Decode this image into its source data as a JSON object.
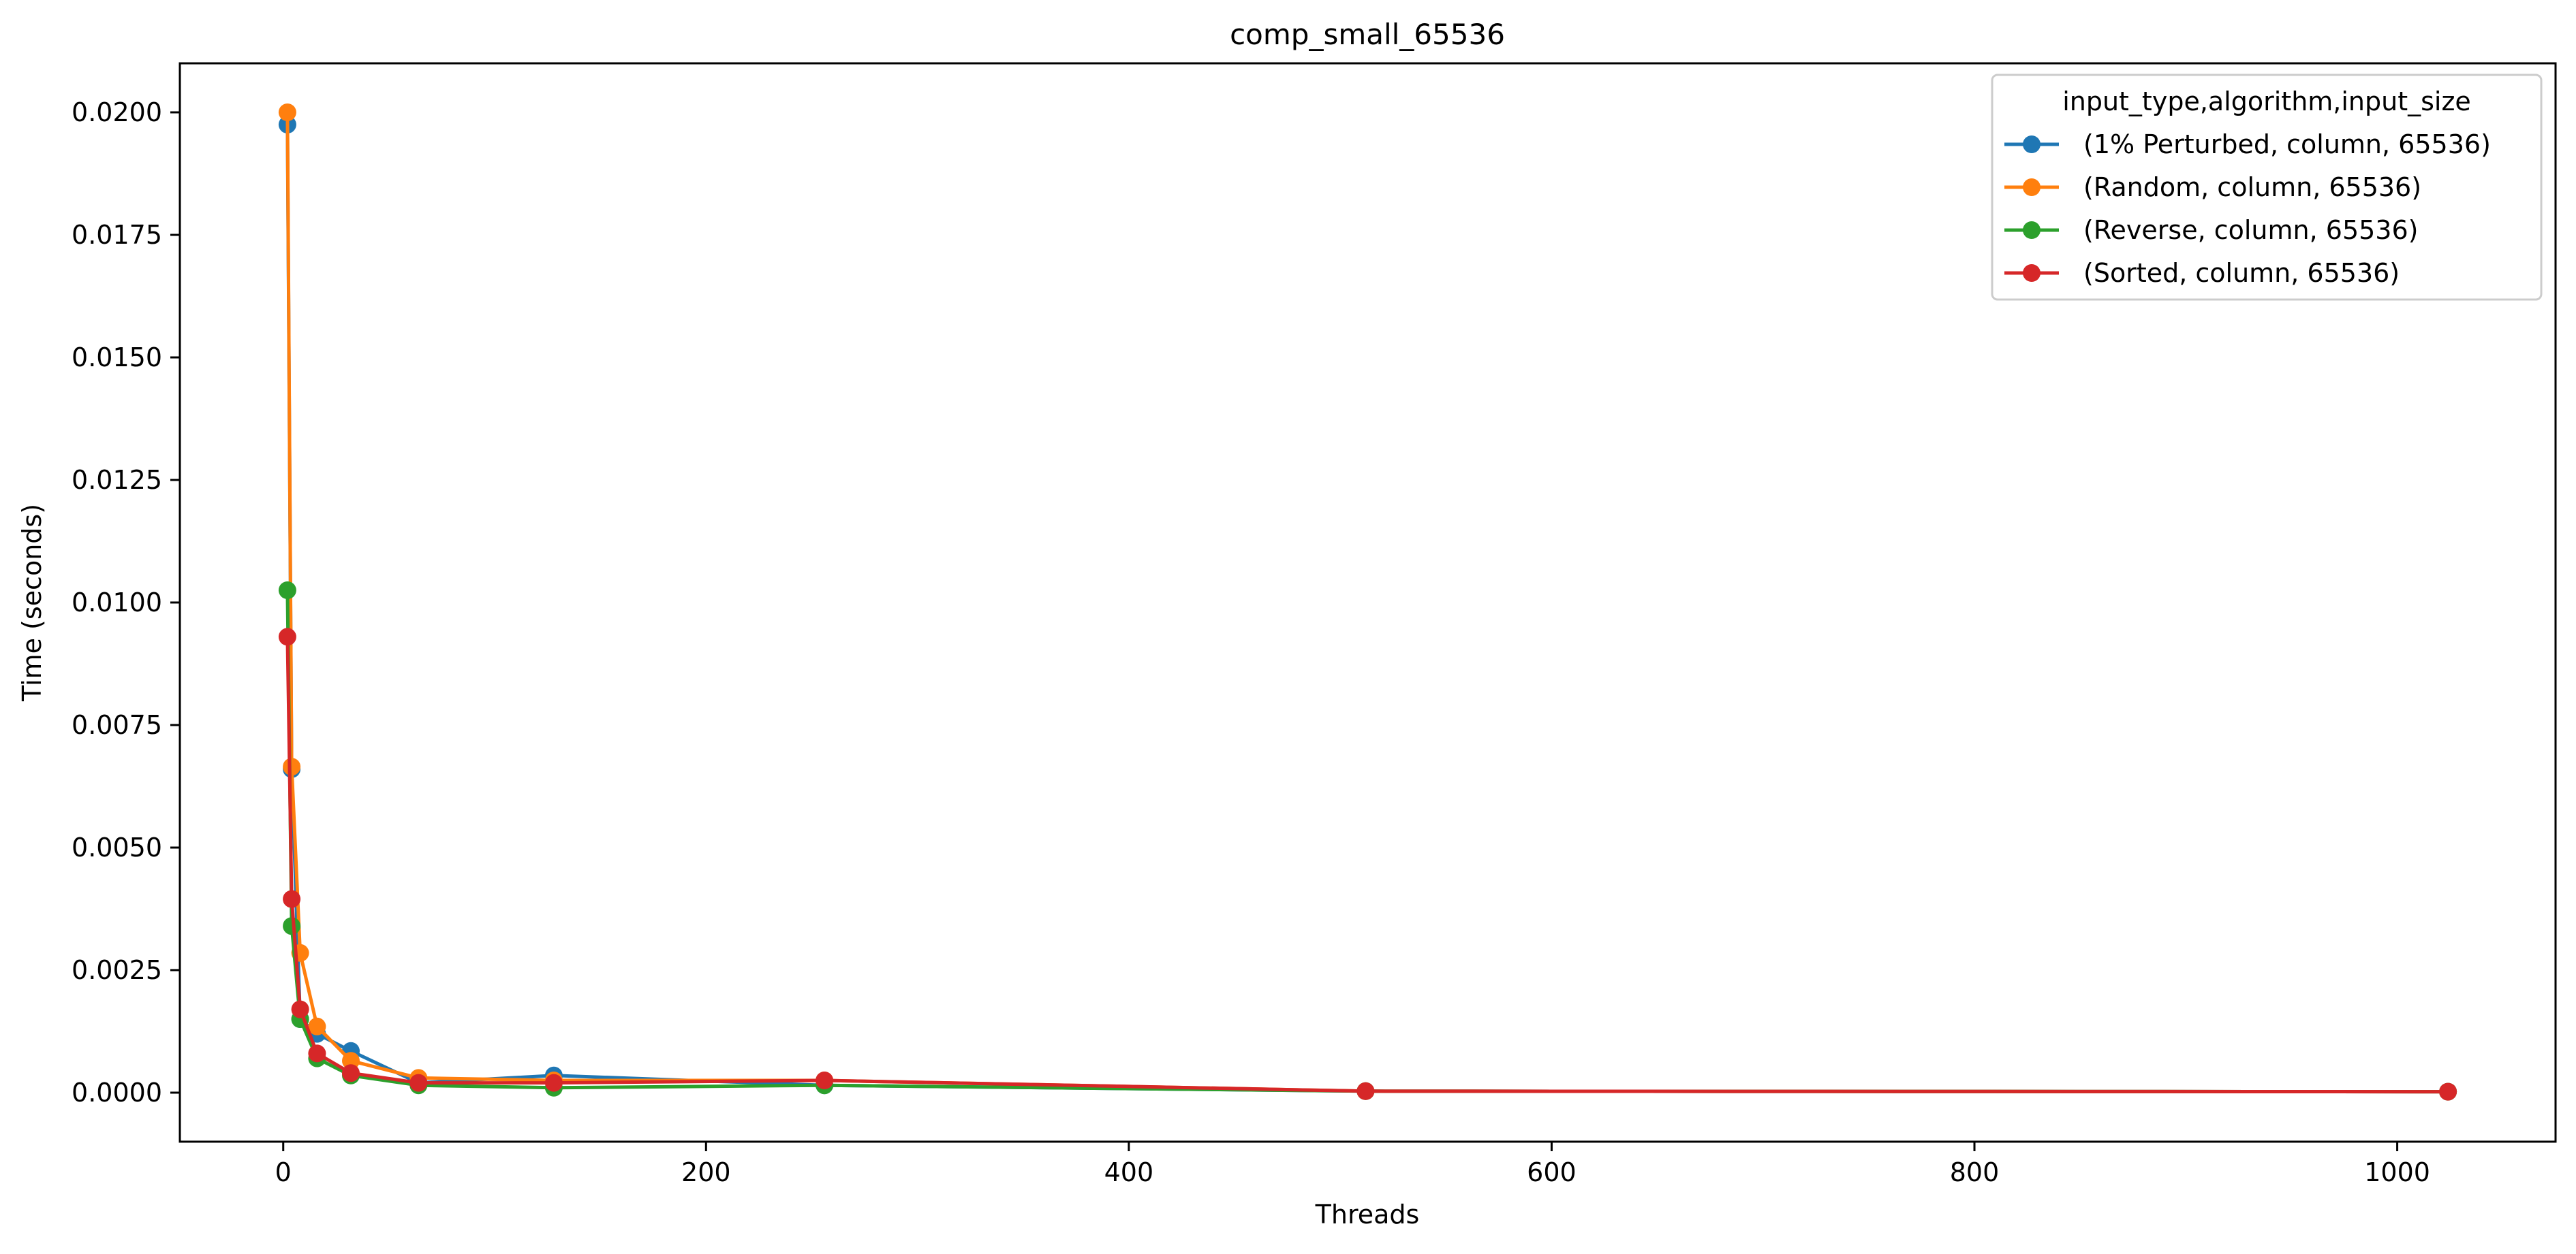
{
  "chart_data": {
    "type": "line",
    "title": "comp_small_65536",
    "xlabel": "Threads",
    "ylabel": "Time (seconds)",
    "xlim": [
      -48.9,
      1074.9
    ],
    "ylim": [
      -0.001,
      0.021
    ],
    "xticks": [
      0,
      200,
      400,
      600,
      800,
      1000
    ],
    "xtick_labels": [
      "0",
      "200",
      "400",
      "600",
      "800",
      "1000"
    ],
    "yticks": [
      0.0,
      0.0025,
      0.005,
      0.0075,
      0.01,
      0.0125,
      0.015,
      0.0175,
      0.02
    ],
    "ytick_labels": [
      "0.0000",
      "0.0025",
      "0.0050",
      "0.0075",
      "0.0100",
      "0.0125",
      "0.0150",
      "0.0175",
      "0.0200"
    ],
    "grid": false,
    "legend": {
      "title": "input_type,algorithm,input_size",
      "placement": "top-right"
    },
    "x": [
      2,
      4,
      8,
      16,
      32,
      64,
      128,
      256,
      512,
      1024
    ],
    "series": [
      {
        "name": "(1% Perturbed, column, 65536)",
        "color": "#1f77b4",
        "values": [
          0.01975,
          0.0066,
          0.0015,
          0.0012,
          0.00085,
          0.0002,
          0.00035,
          0.00015,
          3e-05,
          2e-05
        ]
      },
      {
        "name": "(Random, column, 65536)",
        "color": "#ff7f0e",
        "values": [
          0.02,
          0.00665,
          0.00285,
          0.00135,
          0.00065,
          0.0003,
          0.00025,
          0.00025,
          3e-05,
          2e-05
        ]
      },
      {
        "name": "(Reverse, column, 65536)",
        "color": "#2ca02c",
        "values": [
          0.01025,
          0.0034,
          0.0015,
          0.0007,
          0.00035,
          0.00015,
          0.0001,
          0.00015,
          3e-05,
          2e-05
        ]
      },
      {
        "name": "(Sorted, column, 65536)",
        "color": "#d62728",
        "values": [
          0.0093,
          0.00395,
          0.0017,
          0.0008,
          0.0004,
          0.0002,
          0.0002,
          0.00025,
          3e-05,
          2e-05
        ]
      }
    ]
  }
}
